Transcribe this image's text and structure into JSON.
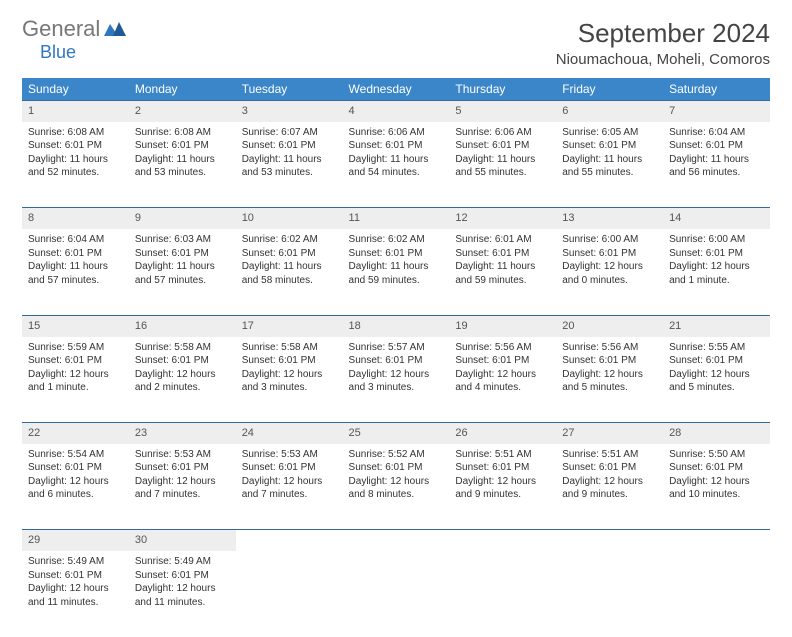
{
  "logo": {
    "general": "General",
    "blue": "Blue"
  },
  "title": "September 2024",
  "location": "Nioumachoua, Moheli, Comoros",
  "colors": {
    "header_bg": "#3a86c8",
    "header_fg": "#ffffff",
    "daynum_bg": "#eeeeee",
    "rule": "#2f6aa0",
    "logo_blue": "#2f78bf",
    "text": "#333333"
  },
  "weekdays": [
    "Sunday",
    "Monday",
    "Tuesday",
    "Wednesday",
    "Thursday",
    "Friday",
    "Saturday"
  ],
  "weeks": [
    [
      {
        "n": "1",
        "sr": "Sunrise: 6:08 AM",
        "ss": "Sunset: 6:01 PM",
        "d1": "Daylight: 11 hours",
        "d2": "and 52 minutes."
      },
      {
        "n": "2",
        "sr": "Sunrise: 6:08 AM",
        "ss": "Sunset: 6:01 PM",
        "d1": "Daylight: 11 hours",
        "d2": "and 53 minutes."
      },
      {
        "n": "3",
        "sr": "Sunrise: 6:07 AM",
        "ss": "Sunset: 6:01 PM",
        "d1": "Daylight: 11 hours",
        "d2": "and 53 minutes."
      },
      {
        "n": "4",
        "sr": "Sunrise: 6:06 AM",
        "ss": "Sunset: 6:01 PM",
        "d1": "Daylight: 11 hours",
        "d2": "and 54 minutes."
      },
      {
        "n": "5",
        "sr": "Sunrise: 6:06 AM",
        "ss": "Sunset: 6:01 PM",
        "d1": "Daylight: 11 hours",
        "d2": "and 55 minutes."
      },
      {
        "n": "6",
        "sr": "Sunrise: 6:05 AM",
        "ss": "Sunset: 6:01 PM",
        "d1": "Daylight: 11 hours",
        "d2": "and 55 minutes."
      },
      {
        "n": "7",
        "sr": "Sunrise: 6:04 AM",
        "ss": "Sunset: 6:01 PM",
        "d1": "Daylight: 11 hours",
        "d2": "and 56 minutes."
      }
    ],
    [
      {
        "n": "8",
        "sr": "Sunrise: 6:04 AM",
        "ss": "Sunset: 6:01 PM",
        "d1": "Daylight: 11 hours",
        "d2": "and 57 minutes."
      },
      {
        "n": "9",
        "sr": "Sunrise: 6:03 AM",
        "ss": "Sunset: 6:01 PM",
        "d1": "Daylight: 11 hours",
        "d2": "and 57 minutes."
      },
      {
        "n": "10",
        "sr": "Sunrise: 6:02 AM",
        "ss": "Sunset: 6:01 PM",
        "d1": "Daylight: 11 hours",
        "d2": "and 58 minutes."
      },
      {
        "n": "11",
        "sr": "Sunrise: 6:02 AM",
        "ss": "Sunset: 6:01 PM",
        "d1": "Daylight: 11 hours",
        "d2": "and 59 minutes."
      },
      {
        "n": "12",
        "sr": "Sunrise: 6:01 AM",
        "ss": "Sunset: 6:01 PM",
        "d1": "Daylight: 11 hours",
        "d2": "and 59 minutes."
      },
      {
        "n": "13",
        "sr": "Sunrise: 6:00 AM",
        "ss": "Sunset: 6:01 PM",
        "d1": "Daylight: 12 hours",
        "d2": "and 0 minutes."
      },
      {
        "n": "14",
        "sr": "Sunrise: 6:00 AM",
        "ss": "Sunset: 6:01 PM",
        "d1": "Daylight: 12 hours",
        "d2": "and 1 minute."
      }
    ],
    [
      {
        "n": "15",
        "sr": "Sunrise: 5:59 AM",
        "ss": "Sunset: 6:01 PM",
        "d1": "Daylight: 12 hours",
        "d2": "and 1 minute."
      },
      {
        "n": "16",
        "sr": "Sunrise: 5:58 AM",
        "ss": "Sunset: 6:01 PM",
        "d1": "Daylight: 12 hours",
        "d2": "and 2 minutes."
      },
      {
        "n": "17",
        "sr": "Sunrise: 5:58 AM",
        "ss": "Sunset: 6:01 PM",
        "d1": "Daylight: 12 hours",
        "d2": "and 3 minutes."
      },
      {
        "n": "18",
        "sr": "Sunrise: 5:57 AM",
        "ss": "Sunset: 6:01 PM",
        "d1": "Daylight: 12 hours",
        "d2": "and 3 minutes."
      },
      {
        "n": "19",
        "sr": "Sunrise: 5:56 AM",
        "ss": "Sunset: 6:01 PM",
        "d1": "Daylight: 12 hours",
        "d2": "and 4 minutes."
      },
      {
        "n": "20",
        "sr": "Sunrise: 5:56 AM",
        "ss": "Sunset: 6:01 PM",
        "d1": "Daylight: 12 hours",
        "d2": "and 5 minutes."
      },
      {
        "n": "21",
        "sr": "Sunrise: 5:55 AM",
        "ss": "Sunset: 6:01 PM",
        "d1": "Daylight: 12 hours",
        "d2": "and 5 minutes."
      }
    ],
    [
      {
        "n": "22",
        "sr": "Sunrise: 5:54 AM",
        "ss": "Sunset: 6:01 PM",
        "d1": "Daylight: 12 hours",
        "d2": "and 6 minutes."
      },
      {
        "n": "23",
        "sr": "Sunrise: 5:53 AM",
        "ss": "Sunset: 6:01 PM",
        "d1": "Daylight: 12 hours",
        "d2": "and 7 minutes."
      },
      {
        "n": "24",
        "sr": "Sunrise: 5:53 AM",
        "ss": "Sunset: 6:01 PM",
        "d1": "Daylight: 12 hours",
        "d2": "and 7 minutes."
      },
      {
        "n": "25",
        "sr": "Sunrise: 5:52 AM",
        "ss": "Sunset: 6:01 PM",
        "d1": "Daylight: 12 hours",
        "d2": "and 8 minutes."
      },
      {
        "n": "26",
        "sr": "Sunrise: 5:51 AM",
        "ss": "Sunset: 6:01 PM",
        "d1": "Daylight: 12 hours",
        "d2": "and 9 minutes."
      },
      {
        "n": "27",
        "sr": "Sunrise: 5:51 AM",
        "ss": "Sunset: 6:01 PM",
        "d1": "Daylight: 12 hours",
        "d2": "and 9 minutes."
      },
      {
        "n": "28",
        "sr": "Sunrise: 5:50 AM",
        "ss": "Sunset: 6:01 PM",
        "d1": "Daylight: 12 hours",
        "d2": "and 10 minutes."
      }
    ],
    [
      {
        "n": "29",
        "sr": "Sunrise: 5:49 AM",
        "ss": "Sunset: 6:01 PM",
        "d1": "Daylight: 12 hours",
        "d2": "and 11 minutes."
      },
      {
        "n": "30",
        "sr": "Sunrise: 5:49 AM",
        "ss": "Sunset: 6:01 PM",
        "d1": "Daylight: 12 hours",
        "d2": "and 11 minutes."
      },
      null,
      null,
      null,
      null,
      null
    ]
  ]
}
